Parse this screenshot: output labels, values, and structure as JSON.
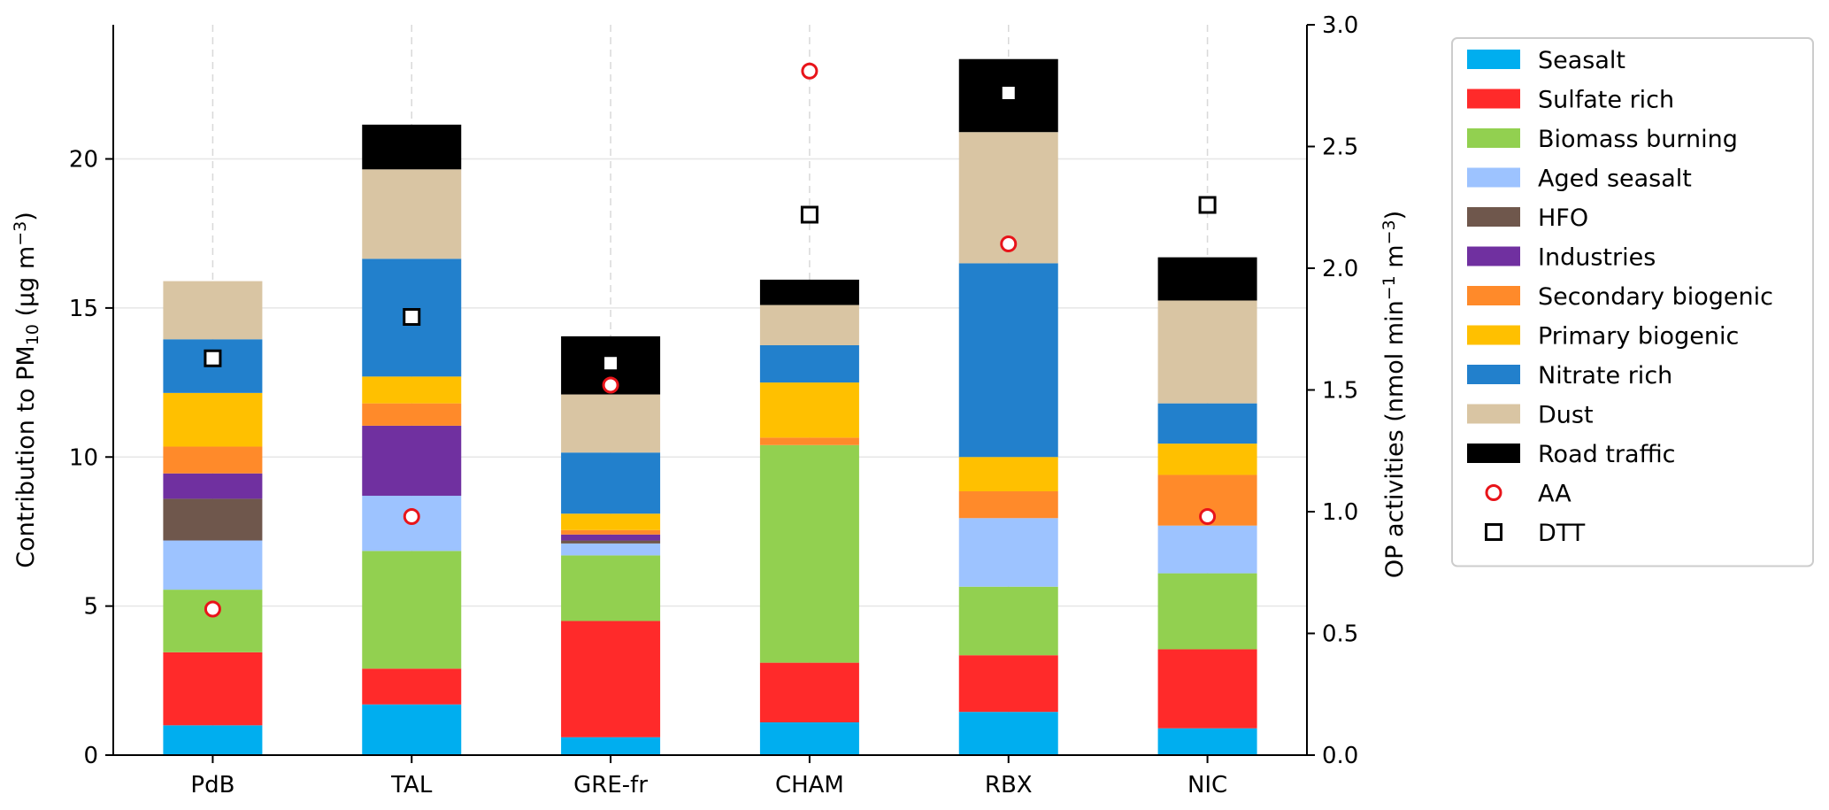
{
  "chart_data": {
    "type": "bar",
    "stacked": true,
    "categories": [
      "PdB",
      "TAL",
      "GRE-fr",
      "CHAM",
      "RBX",
      "NIC"
    ],
    "ylabel_left": {
      "pre": "Contribution to PM",
      "sub": "10",
      "unit_pre": " (µg m",
      "unit_sup": "−3",
      "post": ")"
    },
    "ylabel_right": {
      "pre": "OP activities (nmol min",
      "sup1": "−1",
      "mid": " m",
      "sup2": "−3",
      "post": ")"
    },
    "ylim_left": [
      0,
      24.5
    ],
    "ylim_right": [
      0,
      3.0
    ],
    "yticks_left": [
      0,
      5,
      10,
      15,
      20
    ],
    "yticks_right": [
      0.0,
      0.5,
      1.0,
      1.5,
      2.0,
      2.5,
      3.0
    ],
    "ytick_labels_right": [
      "0.0",
      "0.5",
      "1.0",
      "1.5",
      "2.0",
      "2.5",
      "3.0"
    ],
    "grid": "horizontal light gray; vertical dashed at categories",
    "legend_position": "outside-right-top",
    "series": [
      {
        "name": "Seasalt",
        "color": "#00aeef",
        "values": [
          1.0,
          1.7,
          0.6,
          1.1,
          1.45,
          0.9
        ]
      },
      {
        "name": "Sulfate rich",
        "color": "#ff2a2a",
        "values": [
          2.45,
          1.2,
          3.9,
          2.0,
          1.9,
          2.65
        ]
      },
      {
        "name": "Biomass burning",
        "color": "#92d050",
        "values": [
          2.1,
          3.95,
          2.2,
          7.3,
          2.3,
          2.55
        ]
      },
      {
        "name": "Aged seasalt",
        "color": "#9dc3ff",
        "values": [
          1.65,
          1.85,
          0.4,
          0.0,
          2.3,
          1.6
        ]
      },
      {
        "name": "HFO",
        "color": "#6f574c",
        "values": [
          1.4,
          0.0,
          0.1,
          0.0,
          0.0,
          0.0
        ]
      },
      {
        "name": "Industries",
        "color": "#7030a0",
        "values": [
          0.85,
          2.35,
          0.2,
          0.0,
          0.0,
          0.0
        ]
      },
      {
        "name": "Secondary biogenic",
        "color": "#ff8a2a",
        "values": [
          0.9,
          0.75,
          0.15,
          0.25,
          0.9,
          1.7
        ]
      },
      {
        "name": "Primary biogenic",
        "color": "#ffc000",
        "values": [
          1.8,
          0.9,
          0.55,
          1.85,
          1.15,
          1.05
        ]
      },
      {
        "name": "Nitrate rich",
        "color": "#2280cc",
        "values": [
          1.8,
          3.95,
          2.05,
          1.25,
          6.5,
          1.35
        ]
      },
      {
        "name": "Dust",
        "color": "#d9c5a3",
        "values": [
          1.95,
          3.0,
          1.95,
          1.35,
          4.4,
          3.45
        ]
      },
      {
        "name": "Road traffic",
        "color": "#000000",
        "values": [
          0.0,
          1.5,
          1.95,
          0.85,
          2.45,
          1.45
        ]
      }
    ],
    "markers": [
      {
        "name": "AA",
        "shape": "circle",
        "edge_color": "#e8141a",
        "values": [
          0.6,
          0.98,
          1.52,
          2.81,
          2.1,
          0.98
        ]
      },
      {
        "name": "DTT",
        "shape": "square",
        "edge_color": "#000000",
        "values": [
          1.63,
          1.8,
          1.61,
          2.22,
          2.72,
          2.26
        ]
      }
    ]
  }
}
